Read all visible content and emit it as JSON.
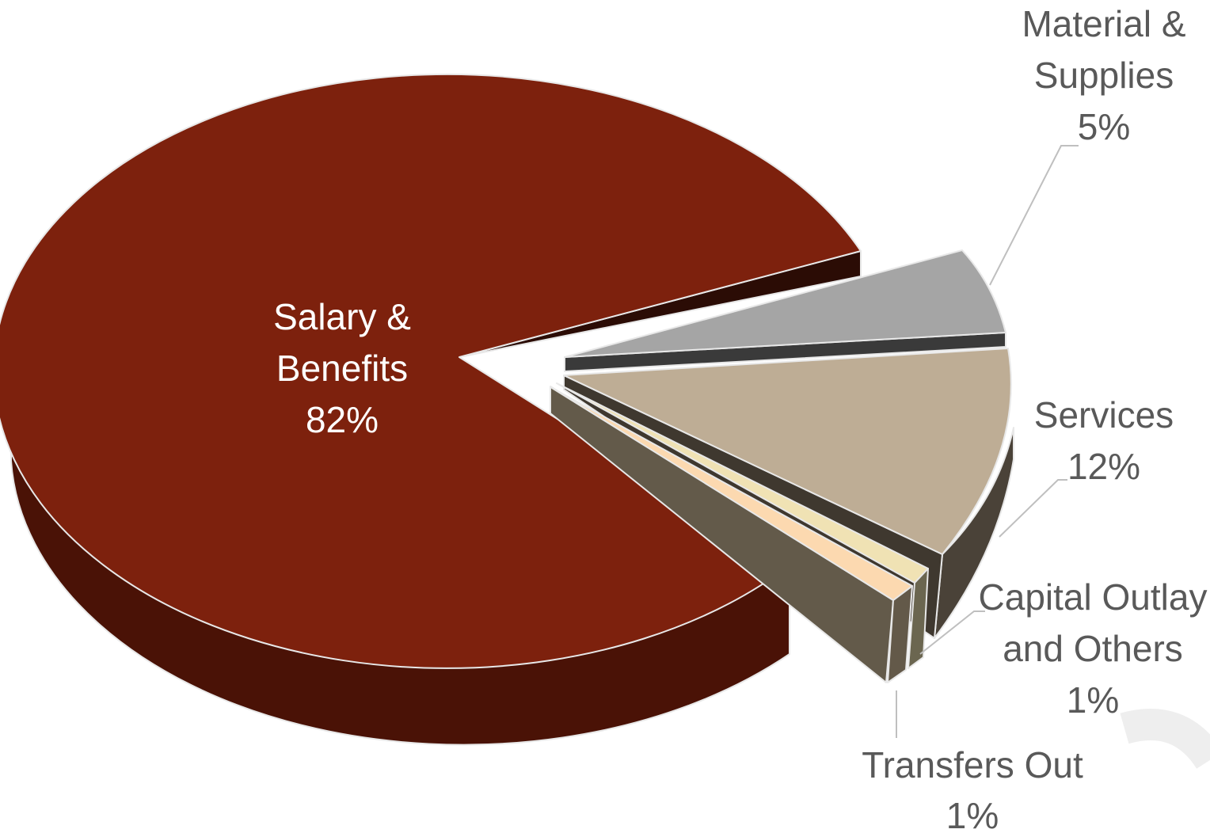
{
  "chart_data": {
    "type": "pie",
    "style": "3d-exploded",
    "slices": [
      {
        "name": "Salary &",
        "name2": "Benefits",
        "value": 82,
        "label": "82%",
        "color": "#7d210d",
        "side": "#4a1206",
        "side_dark": "#2b0c05"
      },
      {
        "name": "Material &",
        "name2": "Supplies",
        "value": 5,
        "label": "5%",
        "color": "#a5a5a5",
        "side": "#454545",
        "side_dark": "#3a3a3a"
      },
      {
        "name": "Services",
        "name2": "",
        "value": 12,
        "label": "12%",
        "color": "#bead95",
        "side": "#4a4238",
        "side_dark": "#3f382f"
      },
      {
        "name": "Capital Outlay",
        "name2": "and Others",
        "value": 1,
        "label": "1%",
        "color": "#f0e2b4",
        "side": "#6b6650",
        "side_dark": "#5c5844"
      },
      {
        "name": "Transfers Out",
        "name2": "",
        "value": 1,
        "label": "1%",
        "color": "#fcd9b0",
        "side": "#635949",
        "side_dark": "#544c3e"
      }
    ],
    "colors": {
      "leader_line": "#bfbfbf",
      "edge": "#e8e8e8",
      "base_plate": "#635a4a"
    }
  }
}
